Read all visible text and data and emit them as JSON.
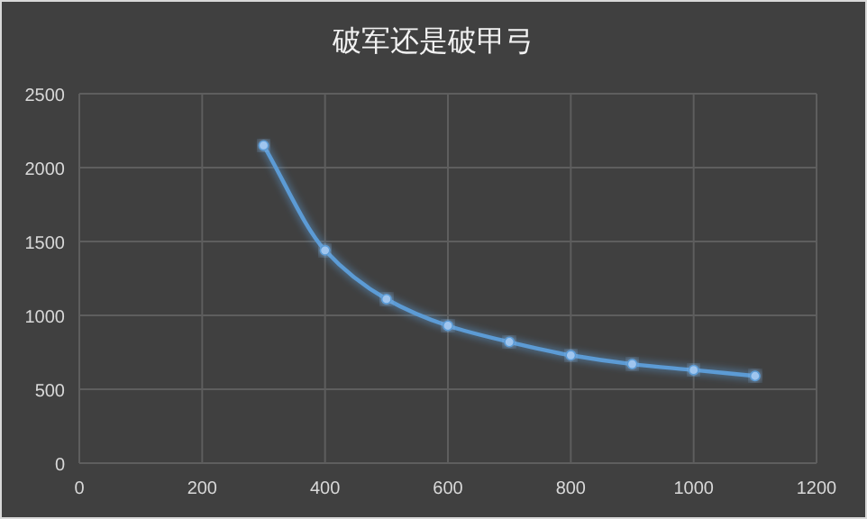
{
  "chart_data": {
    "type": "line",
    "title": "破军还是破甲弓",
    "x": [
      300,
      400,
      500,
      600,
      700,
      800,
      900,
      1000,
      1100
    ],
    "series": [
      {
        "color": "#5b9bd5",
        "values": [
          2150,
          1440,
          1110,
          930,
          820,
          730,
          670,
          630,
          590
        ]
      }
    ],
    "xlim": [
      0,
      1200
    ],
    "xticks": [
      0,
      200,
      400,
      600,
      800,
      1000,
      1200
    ],
    "ylim": [
      0,
      2500
    ],
    "yticks": [
      0,
      500,
      1000,
      1500,
      2000,
      2500
    ],
    "grid": true,
    "marker": "circle",
    "line_style": "solid"
  }
}
